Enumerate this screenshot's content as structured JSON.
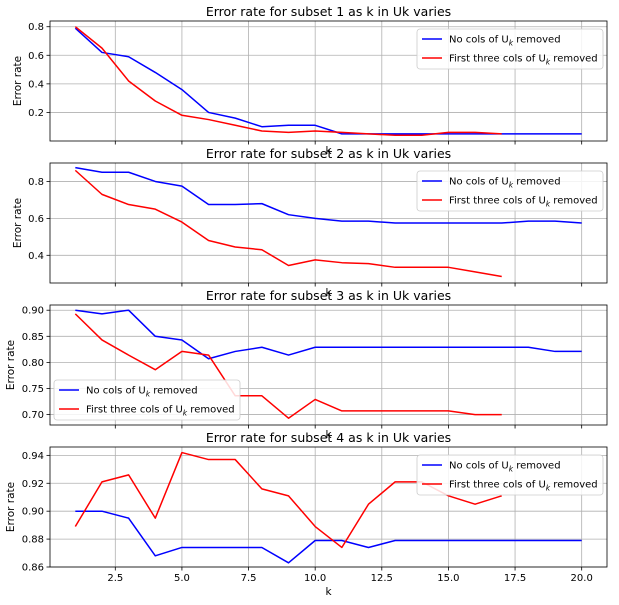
{
  "chart_data": [
    {
      "type": "line",
      "title": "Error rate for subset 1 as k in Uk varies",
      "xlabel": "k",
      "ylabel": "Error rate",
      "xlim": [
        0.05,
        20.95
      ],
      "ylim": [
        0.0,
        0.84
      ],
      "yticks": [
        0.2,
        0.4,
        0.6,
        0.8
      ],
      "ytick_labels": [
        "0.2",
        "0.4",
        "0.6",
        "0.8"
      ],
      "grid": true,
      "legend_position": "top-right",
      "series": [
        {
          "name_pre": "No cols of U",
          "name_sub": "k",
          "name_post": " removed",
          "color": "#0000ff",
          "x": [
            1,
            2,
            3,
            4,
            5,
            6,
            7,
            8,
            9,
            10,
            11,
            12,
            13,
            14,
            15,
            16,
            17,
            18,
            19,
            20
          ],
          "y": [
            0.79,
            0.62,
            0.59,
            0.48,
            0.36,
            0.2,
            0.16,
            0.1,
            0.11,
            0.11,
            0.05,
            0.05,
            0.05,
            0.05,
            0.05,
            0.05,
            0.05,
            0.05,
            0.05,
            0.05
          ]
        },
        {
          "name_pre": "First three cols of U",
          "name_sub": "k",
          "name_post": " removed",
          "color": "#ff0000",
          "x": [
            1,
            2,
            3,
            4,
            5,
            6,
            7,
            8,
            9,
            10,
            11,
            12,
            13,
            14,
            15,
            16,
            17
          ],
          "y": [
            0.8,
            0.65,
            0.42,
            0.28,
            0.18,
            0.15,
            0.11,
            0.07,
            0.06,
            0.07,
            0.06,
            0.05,
            0.04,
            0.04,
            0.06,
            0.06,
            0.05
          ]
        }
      ]
    },
    {
      "type": "line",
      "title": "Error rate for subset 2 as k in Uk varies",
      "xlabel": "k",
      "ylabel": "Error rate",
      "xlim": [
        0.05,
        20.95
      ],
      "ylim": [
        0.25,
        0.9
      ],
      "yticks": [
        0.4,
        0.6,
        0.8
      ],
      "ytick_labels": [
        "0.4",
        "0.6",
        "0.8"
      ],
      "grid": true,
      "legend_position": "top-right",
      "series": [
        {
          "name_pre": "No cols of U",
          "name_sub": "k",
          "name_post": " removed",
          "color": "#0000ff",
          "x": [
            1,
            2,
            3,
            4,
            5,
            6,
            7,
            8,
            9,
            10,
            11,
            12,
            13,
            14,
            15,
            16,
            17,
            18,
            19,
            20
          ],
          "y": [
            0.875,
            0.85,
            0.85,
            0.8,
            0.775,
            0.675,
            0.675,
            0.68,
            0.62,
            0.6,
            0.585,
            0.585,
            0.575,
            0.575,
            0.575,
            0.575,
            0.575,
            0.585,
            0.585,
            0.575
          ]
        },
        {
          "name_pre": "First three cols of U",
          "name_sub": "k",
          "name_post": " removed",
          "color": "#ff0000",
          "x": [
            1,
            2,
            3,
            4,
            5,
            6,
            7,
            8,
            9,
            10,
            11,
            12,
            13,
            14,
            15,
            16,
            17
          ],
          "y": [
            0.86,
            0.73,
            0.675,
            0.65,
            0.58,
            0.48,
            0.445,
            0.43,
            0.345,
            0.375,
            0.36,
            0.355,
            0.335,
            0.335,
            0.335,
            0.31,
            0.285
          ]
        }
      ]
    },
    {
      "type": "line",
      "title": "Error rate for subset 3 as k in Uk varies",
      "xlabel": "k",
      "ylabel": "Error rate",
      "xlim": [
        0.05,
        20.95
      ],
      "ylim": [
        0.68,
        0.91
      ],
      "yticks": [
        0.7,
        0.75,
        0.8,
        0.85,
        0.9
      ],
      "ytick_labels": [
        "0.70",
        "0.75",
        "0.80",
        "0.85",
        "0.90"
      ],
      "grid": true,
      "legend_position": "lower-left",
      "series": [
        {
          "name_pre": "No cols of U",
          "name_sub": "k",
          "name_post": " removed",
          "color": "#0000ff",
          "x": [
            1,
            2,
            3,
            4,
            5,
            6,
            7,
            8,
            9,
            10,
            11,
            12,
            13,
            14,
            15,
            16,
            17,
            18,
            19,
            20
          ],
          "y": [
            0.9,
            0.893,
            0.9,
            0.85,
            0.843,
            0.807,
            0.821,
            0.829,
            0.814,
            0.829,
            0.829,
            0.829,
            0.829,
            0.829,
            0.829,
            0.829,
            0.829,
            0.829,
            0.821,
            0.821
          ]
        },
        {
          "name_pre": "First three cols of U",
          "name_sub": "k",
          "name_post": " removed",
          "color": "#ff0000",
          "x": [
            1,
            2,
            3,
            4,
            5,
            6,
            7,
            8,
            9,
            10,
            11,
            12,
            13,
            14,
            15,
            16,
            17
          ],
          "y": [
            0.893,
            0.843,
            0.814,
            0.786,
            0.821,
            0.814,
            0.736,
            0.736,
            0.693,
            0.729,
            0.707,
            0.707,
            0.707,
            0.707,
            0.707,
            0.7,
            0.7
          ]
        }
      ]
    },
    {
      "type": "line",
      "title": "Error rate for subset 4 as k in Uk varies",
      "xlabel": "k",
      "ylabel": "Error rate",
      "xlim": [
        0.05,
        20.95
      ],
      "ylim": [
        0.86,
        0.946
      ],
      "yticks": [
        0.86,
        0.88,
        0.9,
        0.92,
        0.94
      ],
      "ytick_labels": [
        "0.86",
        "0.88",
        "0.90",
        "0.92",
        "0.94"
      ],
      "xticks": [
        2.5,
        5.0,
        7.5,
        10.0,
        12.5,
        15.0,
        17.5,
        20.0
      ],
      "xtick_labels": [
        "2.5",
        "5.0",
        "7.5",
        "10.0",
        "12.5",
        "15.0",
        "17.5",
        "20.0"
      ],
      "grid": true,
      "legend_position": "top-right",
      "series": [
        {
          "name_pre": "No cols of U",
          "name_sub": "k",
          "name_post": " removed",
          "color": "#0000ff",
          "x": [
            1,
            2,
            3,
            4,
            5,
            6,
            7,
            8,
            9,
            10,
            11,
            12,
            13,
            14,
            15,
            16,
            17,
            18,
            19,
            20
          ],
          "y": [
            0.9,
            0.9,
            0.895,
            0.868,
            0.874,
            0.874,
            0.874,
            0.874,
            0.863,
            0.879,
            0.879,
            0.874,
            0.879,
            0.879,
            0.879,
            0.879,
            0.879,
            0.879,
            0.879,
            0.879
          ]
        },
        {
          "name_pre": "First three cols of U",
          "name_sub": "k",
          "name_post": " removed",
          "color": "#ff0000",
          "x": [
            1,
            2,
            3,
            4,
            5,
            6,
            7,
            8,
            9,
            10,
            11,
            12,
            13,
            14,
            15,
            16,
            17
          ],
          "y": [
            0.889,
            0.921,
            0.926,
            0.895,
            0.942,
            0.937,
            0.937,
            0.916,
            0.911,
            0.889,
            0.874,
            0.905,
            0.921,
            0.921,
            0.911,
            0.905,
            0.911
          ]
        }
      ]
    }
  ]
}
